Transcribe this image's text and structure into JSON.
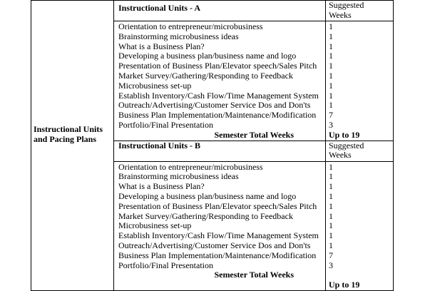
{
  "row_label": [
    "Instructional Units",
    "and Pacing Plans"
  ],
  "sections": [
    {
      "title": "Instructional Units - A",
      "weeks_header": [
        "Suggested",
        "Weeks"
      ],
      "items": [
        {
          "unit": "Orientation to entrepreneur/microbusiness",
          "weeks": "1"
        },
        {
          "unit": "Brainstorming microbusiness ideas",
          "weeks": "1"
        },
        {
          "unit": "What is a Business Plan?",
          "weeks": "1"
        },
        {
          "unit": "Developing a business plan/business name and logo",
          "weeks": "1"
        },
        {
          "unit": "Presentation of Business Plan/Elevator speech/Sales Pitch",
          "weeks": "1"
        },
        {
          "unit": "Market Survey/Gathering/Responding to Feedback",
          "weeks": "1"
        },
        {
          "unit": "Microbusiness set-up",
          "weeks": "1"
        },
        {
          "unit": "Establish Inventory/Cash Flow/Time Management System",
          "weeks": "1"
        },
        {
          "unit": "Outreach/Advertising/Customer Service Dos and Don'ts",
          "weeks": "1"
        },
        {
          "unit": "Business Plan Implementation/Maintenance/Modification",
          "weeks": "7"
        },
        {
          "unit": "Portfolio/Final Presentation",
          "weeks": "3"
        }
      ],
      "total_label": "Semester Total Weeks",
      "total_value": "Up to 19"
    },
    {
      "title": "Instructional Units - B",
      "weeks_header": [
        "Suggested",
        "Weeks"
      ],
      "items": [
        {
          "unit": "Orientation to entrepreneur/microbusiness",
          "weeks": "1"
        },
        {
          "unit": "Brainstorming microbusiness ideas",
          "weeks": "1"
        },
        {
          "unit": "What is a Business Plan?",
          "weeks": "1"
        },
        {
          "unit": "Developing a business plan/business name and logo",
          "weeks": "1"
        },
        {
          "unit": "Presentation of Business Plan/Elevator speech/Sales Pitch",
          "weeks": "1"
        },
        {
          "unit": "Market Survey/Gathering/Responding to Feedback",
          "weeks": "1"
        },
        {
          "unit": "Microbusiness set-up",
          "weeks": "1"
        },
        {
          "unit": "Establish Inventory/Cash Flow/Time Management System",
          "weeks": "1"
        },
        {
          "unit": "Outreach/Advertising/Customer Service Dos and Don'ts",
          "weeks": "1"
        },
        {
          "unit": "Business Plan Implementation/Maintenance/Modification",
          "weeks": "7"
        },
        {
          "unit": "Portfolio/Final Presentation",
          "weeks": "3"
        }
      ],
      "total_label": "Semester Total Weeks",
      "total_value": "Up to 19"
    }
  ]
}
